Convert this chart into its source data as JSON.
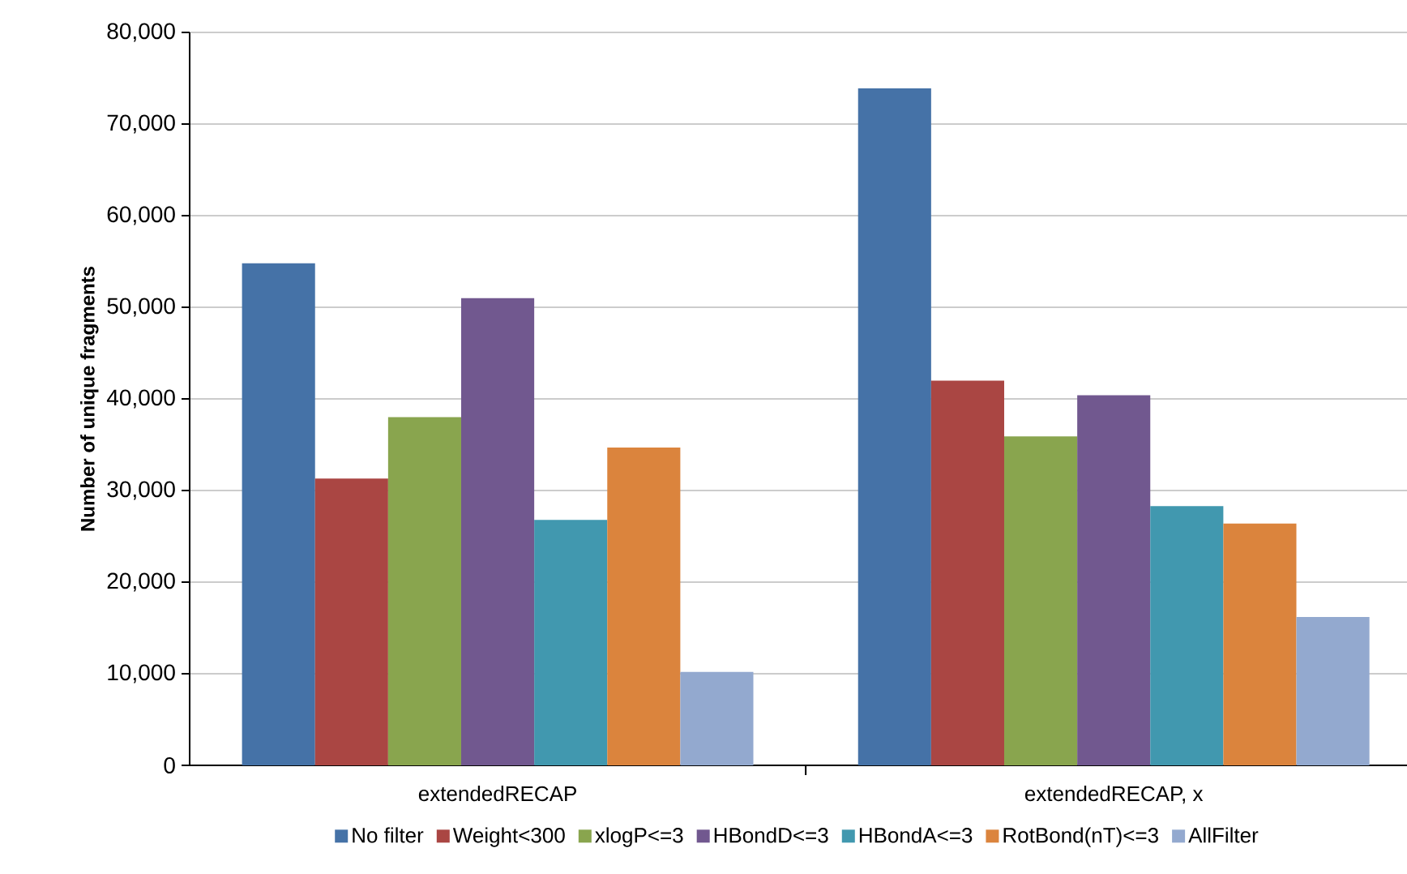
{
  "chart_data": {
    "type": "bar",
    "ylabel": "Number of unique fragments",
    "categories": [
      "extendedRECAP",
      "extendedRECAP, x"
    ],
    "series": [
      {
        "name": "No filter",
        "color": "#4572a7",
        "values": [
          54800,
          73900
        ]
      },
      {
        "name": "Weight<300",
        "color": "#aa4643",
        "values": [
          31300,
          42000
        ]
      },
      {
        "name": "xlogP<=3",
        "color": "#89a54e",
        "values": [
          38000,
          35900
        ]
      },
      {
        "name": "HBondD<=3",
        "color": "#71588f",
        "values": [
          51000,
          40400
        ]
      },
      {
        "name": "HBondA<=3",
        "color": "#4198af",
        "values": [
          26800,
          28300
        ]
      },
      {
        "name": "RotBond(nT)<=3",
        "color": "#db843d",
        "values": [
          34700,
          26400
        ]
      },
      {
        "name": "AllFilter",
        "color": "#93a9cf",
        "values": [
          10200,
          16200
        ]
      }
    ],
    "ylim": [
      0,
      80000
    ],
    "yticks": [
      0,
      {
        "value": 10000,
        "label": "10,000"
      },
      {
        "value": 20000,
        "label": "20,000"
      },
      {
        "value": 30000,
        "label": "30,000"
      },
      {
        "value": 40000,
        "label": "40,000"
      },
      {
        "value": 50000,
        "label": "50,000"
      },
      {
        "value": 60000,
        "label": "60,000"
      },
      {
        "value": 70000,
        "label": "70,000"
      },
      {
        "value": 80000,
        "label": "80,000"
      }
    ],
    "grid": "y",
    "legend": "bottom"
  }
}
